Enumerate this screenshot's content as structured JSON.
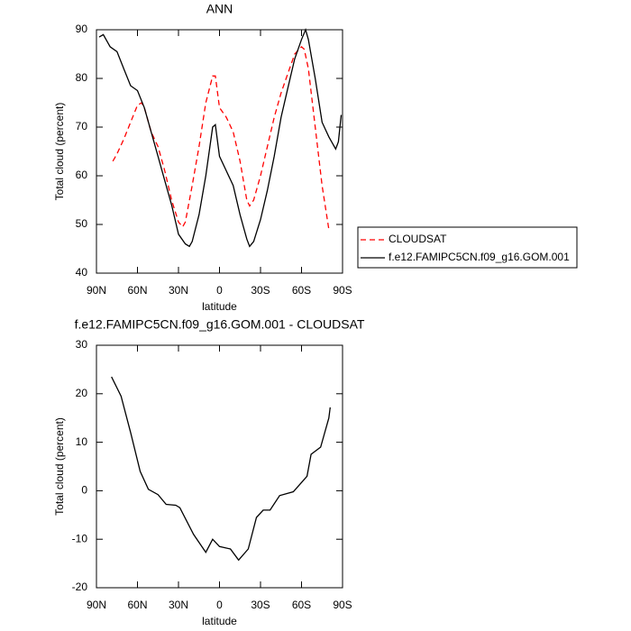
{
  "chart_data": [
    {
      "type": "line",
      "title": "ANN",
      "xlabel": "latitude",
      "ylabel": "Total cloud (percent)",
      "xlim": [
        90,
        -90
      ],
      "ylim": [
        40,
        90
      ],
      "xticks": [
        {
          "value": 90,
          "label": "90N"
        },
        {
          "value": 60,
          "label": "60N"
        },
        {
          "value": 30,
          "label": "30N"
        },
        0,
        {
          "value": -30,
          "label": "30S"
        },
        {
          "value": -60,
          "label": "60S"
        },
        {
          "value": -90,
          "label": "90S"
        }
      ],
      "yticks": [
        40,
        50,
        60,
        70,
        80,
        90
      ],
      "series": [
        {
          "name": "CLOUDSAT",
          "color": "#ff0000",
          "dashed": true,
          "x": [
            78,
            75,
            70,
            65,
            60,
            57,
            55,
            50,
            45,
            40,
            35,
            30,
            27,
            25,
            20,
            15,
            10,
            5,
            3,
            0,
            -5,
            -10,
            -15,
            -20,
            -22,
            -25,
            -30,
            -35,
            -40,
            -45,
            -50,
            -55,
            -60,
            -62,
            -65,
            -70,
            -75,
            -80
          ],
          "values": [
            63,
            64.5,
            67.5,
            71,
            74.5,
            75,
            74,
            69,
            66,
            61,
            55,
            50.5,
            49.5,
            50.5,
            58,
            66,
            75,
            80.5,
            80.5,
            74,
            72,
            69,
            63,
            55,
            53.8,
            55,
            60,
            66,
            72,
            77,
            81,
            85,
            86.5,
            86,
            82,
            70,
            58,
            49
          ]
        },
        {
          "name": "f.e12.FAMIPC5CN.f09_g16.GOM.001",
          "color": "#000000",
          "dashed": false,
          "x": [
            88,
            85,
            80,
            75,
            70,
            65,
            60,
            55,
            50,
            45,
            40,
            35,
            30,
            25,
            22,
            20,
            15,
            10,
            5,
            3,
            0,
            -5,
            -10,
            -15,
            -20,
            -22,
            -25,
            -30,
            -35,
            -40,
            -45,
            -50,
            -55,
            -60,
            -63,
            -65,
            -70,
            -75,
            -80,
            -85,
            -87,
            -89
          ],
          "values": [
            88.5,
            89,
            86.5,
            85.5,
            82,
            78.5,
            77.5,
            74,
            69,
            64,
            59,
            54,
            48,
            46,
            45.5,
            46.5,
            52,
            60,
            70,
            70.5,
            64,
            61,
            58,
            52,
            47,
            45.5,
            46.5,
            51,
            57,
            64,
            72,
            78,
            84,
            88,
            90,
            88,
            80,
            71,
            68,
            65.5,
            67,
            72.5
          ]
        }
      ]
    },
    {
      "type": "line",
      "title": "f.e12.FAMIPC5CN.f09_g16.GOM.001 - CLOUDSAT",
      "xlabel": "latitude",
      "ylabel": "Total cloud (percent)",
      "xlim": [
        90,
        -90
      ],
      "ylim": [
        -20,
        30
      ],
      "xticks": [
        {
          "value": 90,
          "label": "90N"
        },
        {
          "value": 60,
          "label": "60N"
        },
        {
          "value": 30,
          "label": "30N"
        },
        0,
        {
          "value": -30,
          "label": "30S"
        },
        {
          "value": -60,
          "label": "60S"
        },
        {
          "value": -90,
          "label": "90S"
        }
      ],
      "yticks": [
        -20,
        -10,
        0,
        10,
        20,
        30
      ],
      "series": [
        {
          "color": "#000000",
          "dashed": false,
          "x": [
            79,
            72,
            65,
            58,
            52,
            45,
            39,
            32,
            29,
            19,
            10,
            5,
            0,
            -8,
            -14,
            -21,
            -27,
            -32,
            -37,
            -44,
            -54,
            -64,
            -67,
            -74,
            -80,
            -81
          ],
          "values": [
            23.5,
            19.5,
            12,
            4,
            0.3,
            -0.8,
            -2.8,
            -3,
            -3.5,
            -9,
            -12.7,
            -10,
            -11.5,
            -12,
            -14.3,
            -12,
            -5.5,
            -4,
            -4,
            -1,
            -0.2,
            3,
            7.5,
            9,
            15,
            17.2
          ]
        }
      ]
    }
  ]
}
